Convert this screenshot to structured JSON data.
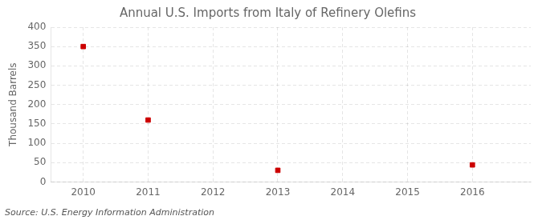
{
  "chart_data": {
    "type": "scatter",
    "title": "Annual U.S. Imports from Italy of Refinery Olefins",
    "ylabel": "Thousand Barrels",
    "annotation": "Source: U.S. Energy Information Administration",
    "x": [
      2010,
      2011,
      2013,
      2016
    ],
    "values": [
      350,
      160,
      30,
      44
    ],
    "color": "#cc0000",
    "marker": "square",
    "xlim": [
      2009.5,
      2016.9
    ],
    "ylim": [
      0,
      400
    ],
    "xticks": [
      2010,
      2011,
      2012,
      2013,
      2014,
      2015,
      2016
    ],
    "yticks": [
      0,
      50,
      100,
      150,
      200,
      250,
      300,
      350,
      400
    ],
    "grid": true
  }
}
